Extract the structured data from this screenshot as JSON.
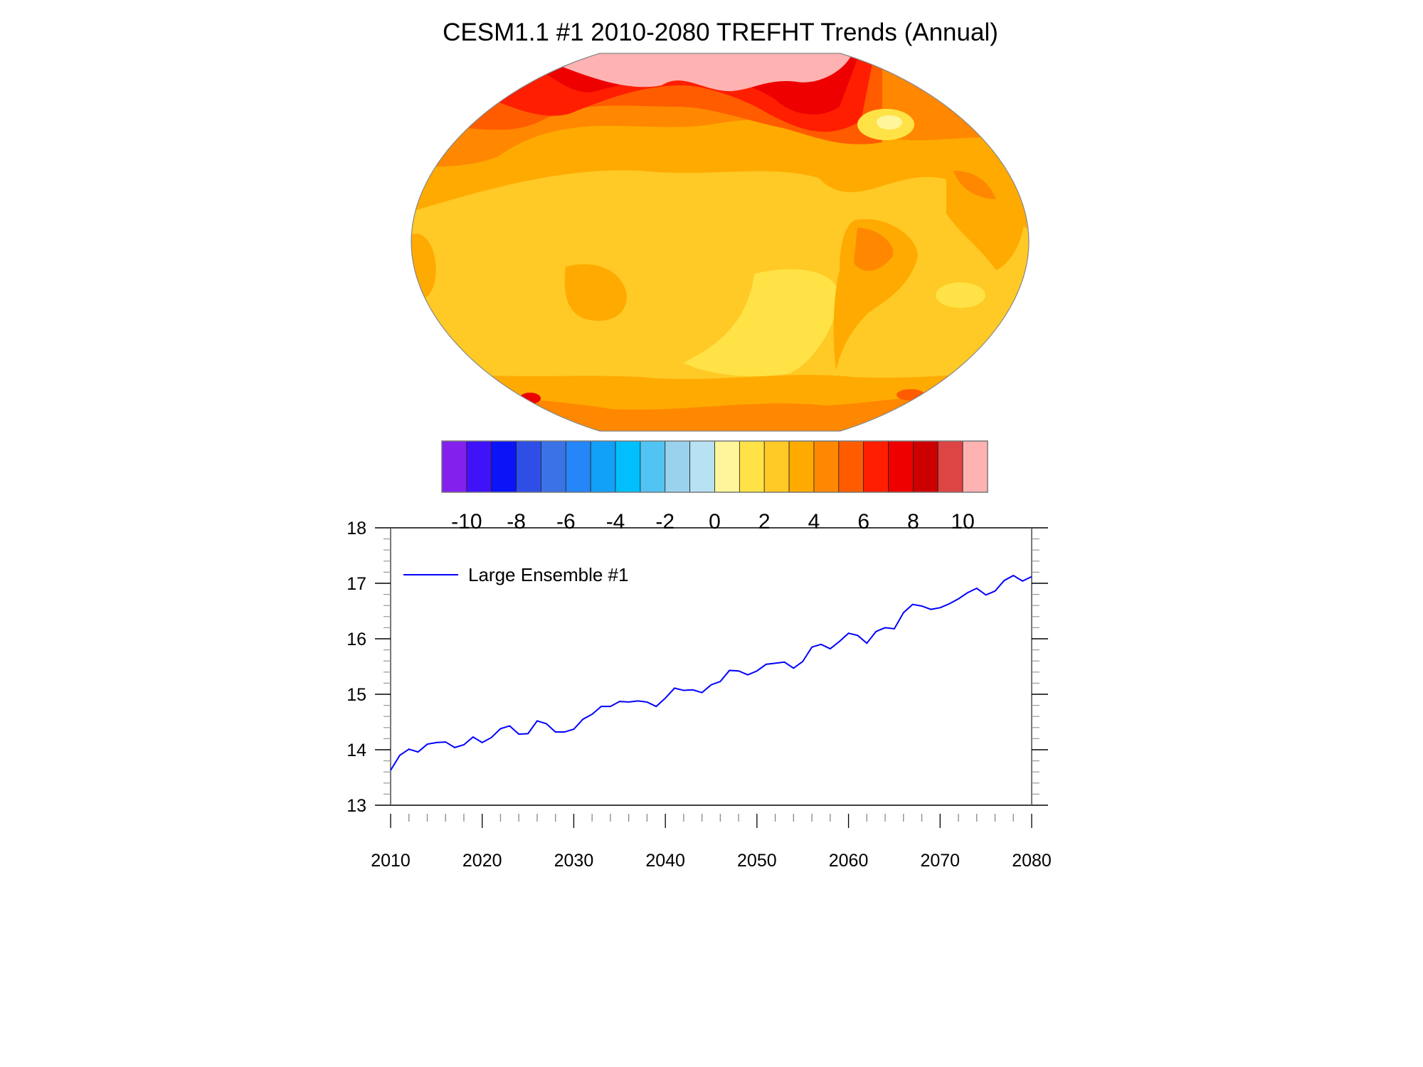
{
  "chart_data": [
    {
      "type": "heatmap",
      "title": "CESM1.1 #1 2010-2080 TREFHT Trends (Annual)",
      "projection": "global map (Pacific-centered)",
      "colorbar": {
        "tick_labels": [
          "-10",
          "-8",
          "-6",
          "-4",
          "-2",
          "0",
          "2",
          "4",
          "6",
          "8",
          "10"
        ],
        "levels": [
          -10,
          -9,
          -8,
          -7,
          -6,
          -5,
          -4,
          -3,
          -2,
          -1,
          0,
          1,
          2,
          3,
          4,
          5,
          6,
          7,
          8,
          9,
          10
        ],
        "colors": [
          "#8320EE",
          "#3F12F8",
          "#0A14F7",
          "#2F4EE6",
          "#3A73E6",
          "#2486F8",
          "#13A0F8",
          "#00BFFC",
          "#52C4F4",
          "#9AD2EE",
          "#B8E2F4",
          "#FFF59A",
          "#FFE245",
          "#FFC926",
          "#FFAA00",
          "#FF8800",
          "#FF5C00",
          "#FF1E00",
          "#EE0000",
          "#CC0000",
          "#DD4444",
          "#FFB2B2"
        ]
      }
    },
    {
      "type": "line",
      "xlim": [
        2010,
        2080
      ],
      "ylim": [
        13,
        18
      ],
      "xticks": [
        "2010",
        "2020",
        "2030",
        "2040",
        "2050",
        "2060",
        "2070",
        "2080"
      ],
      "yticks": [
        "13",
        "14",
        "15",
        "16",
        "17",
        "18"
      ],
      "legend_placement": "top-left",
      "series": [
        {
          "name": "Large Ensemble #1",
          "color": "#0000FF",
          "x_start": 2010,
          "values": [
            13.63,
            13.9,
            14.01,
            13.96,
            14.1,
            14.13,
            14.14,
            14.04,
            14.09,
            14.23,
            14.13,
            14.22,
            14.38,
            14.43,
            14.28,
            14.29,
            14.52,
            14.47,
            14.32,
            14.32,
            14.37,
            14.55,
            14.64,
            14.78,
            14.78,
            14.87,
            14.86,
            14.88,
            14.86,
            14.78,
            14.93,
            15.11,
            15.07,
            15.08,
            15.03,
            15.17,
            15.23,
            15.43,
            15.42,
            15.35,
            15.42,
            15.54,
            15.56,
            15.58,
            15.47,
            15.59,
            15.85,
            15.9,
            15.82,
            15.95,
            16.1,
            16.06,
            15.92,
            16.13,
            16.2,
            16.18,
            16.47,
            16.62,
            16.59,
            16.53,
            16.56,
            16.63,
            16.72,
            16.83,
            16.91,
            16.79,
            16.86,
            17.05,
            17.14,
            17.04,
            17.12
          ]
        }
      ]
    }
  ]
}
